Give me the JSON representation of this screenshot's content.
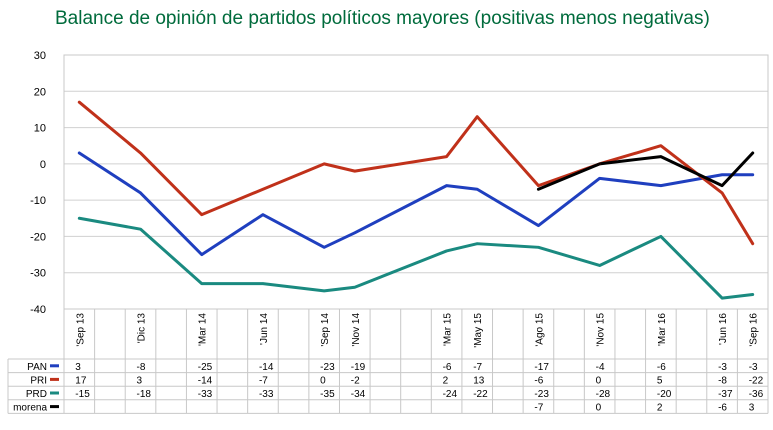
{
  "chart_data": {
    "type": "line",
    "title": "Balance de opinión de partidos políticos mayores (positivas menos negativas)",
    "xlabel": "",
    "ylabel": "",
    "ylim": [
      -40,
      30
    ],
    "yticks": [
      30,
      20,
      10,
      0,
      -10,
      -20,
      -30,
      -40
    ],
    "grid": true,
    "legend": "table-left",
    "categories": [
      "Sep 13",
      "Dic 13",
      "Mar 14",
      "Jun 14",
      "Sep 14",
      "Nov 14",
      "Mar 15",
      "May 15",
      "Ago 15",
      "Nov 15",
      "Mar 16",
      "Jun 16",
      "Sep 16"
    ],
    "x_index": [
      0,
      2,
      4,
      6,
      8,
      9,
      12,
      13,
      15,
      17,
      19,
      21,
      22
    ],
    "x_slots": 23,
    "series": [
      {
        "name": "PAN",
        "color": "#1f3fbf",
        "values": [
          3,
          -8,
          -25,
          -14,
          -23,
          -19,
          -6,
          -7,
          -17,
          -4,
          -6,
          -3,
          -3
        ]
      },
      {
        "name": "PRI",
        "color": "#c0311a",
        "values": [
          17,
          3,
          -14,
          -7,
          0,
          -2,
          2,
          13,
          -6,
          0,
          5,
          -8,
          -22
        ]
      },
      {
        "name": "PRD",
        "color": "#1a8a80",
        "values": [
          -15,
          -18,
          -33,
          -33,
          -35,
          -34,
          -24,
          -22,
          -23,
          -28,
          -20,
          -37,
          -36
        ]
      },
      {
        "name": "morena",
        "color": "#000000",
        "values": [
          null,
          null,
          null,
          null,
          null,
          null,
          null,
          null,
          -7,
          0,
          2,
          -6,
          3
        ]
      }
    ]
  }
}
